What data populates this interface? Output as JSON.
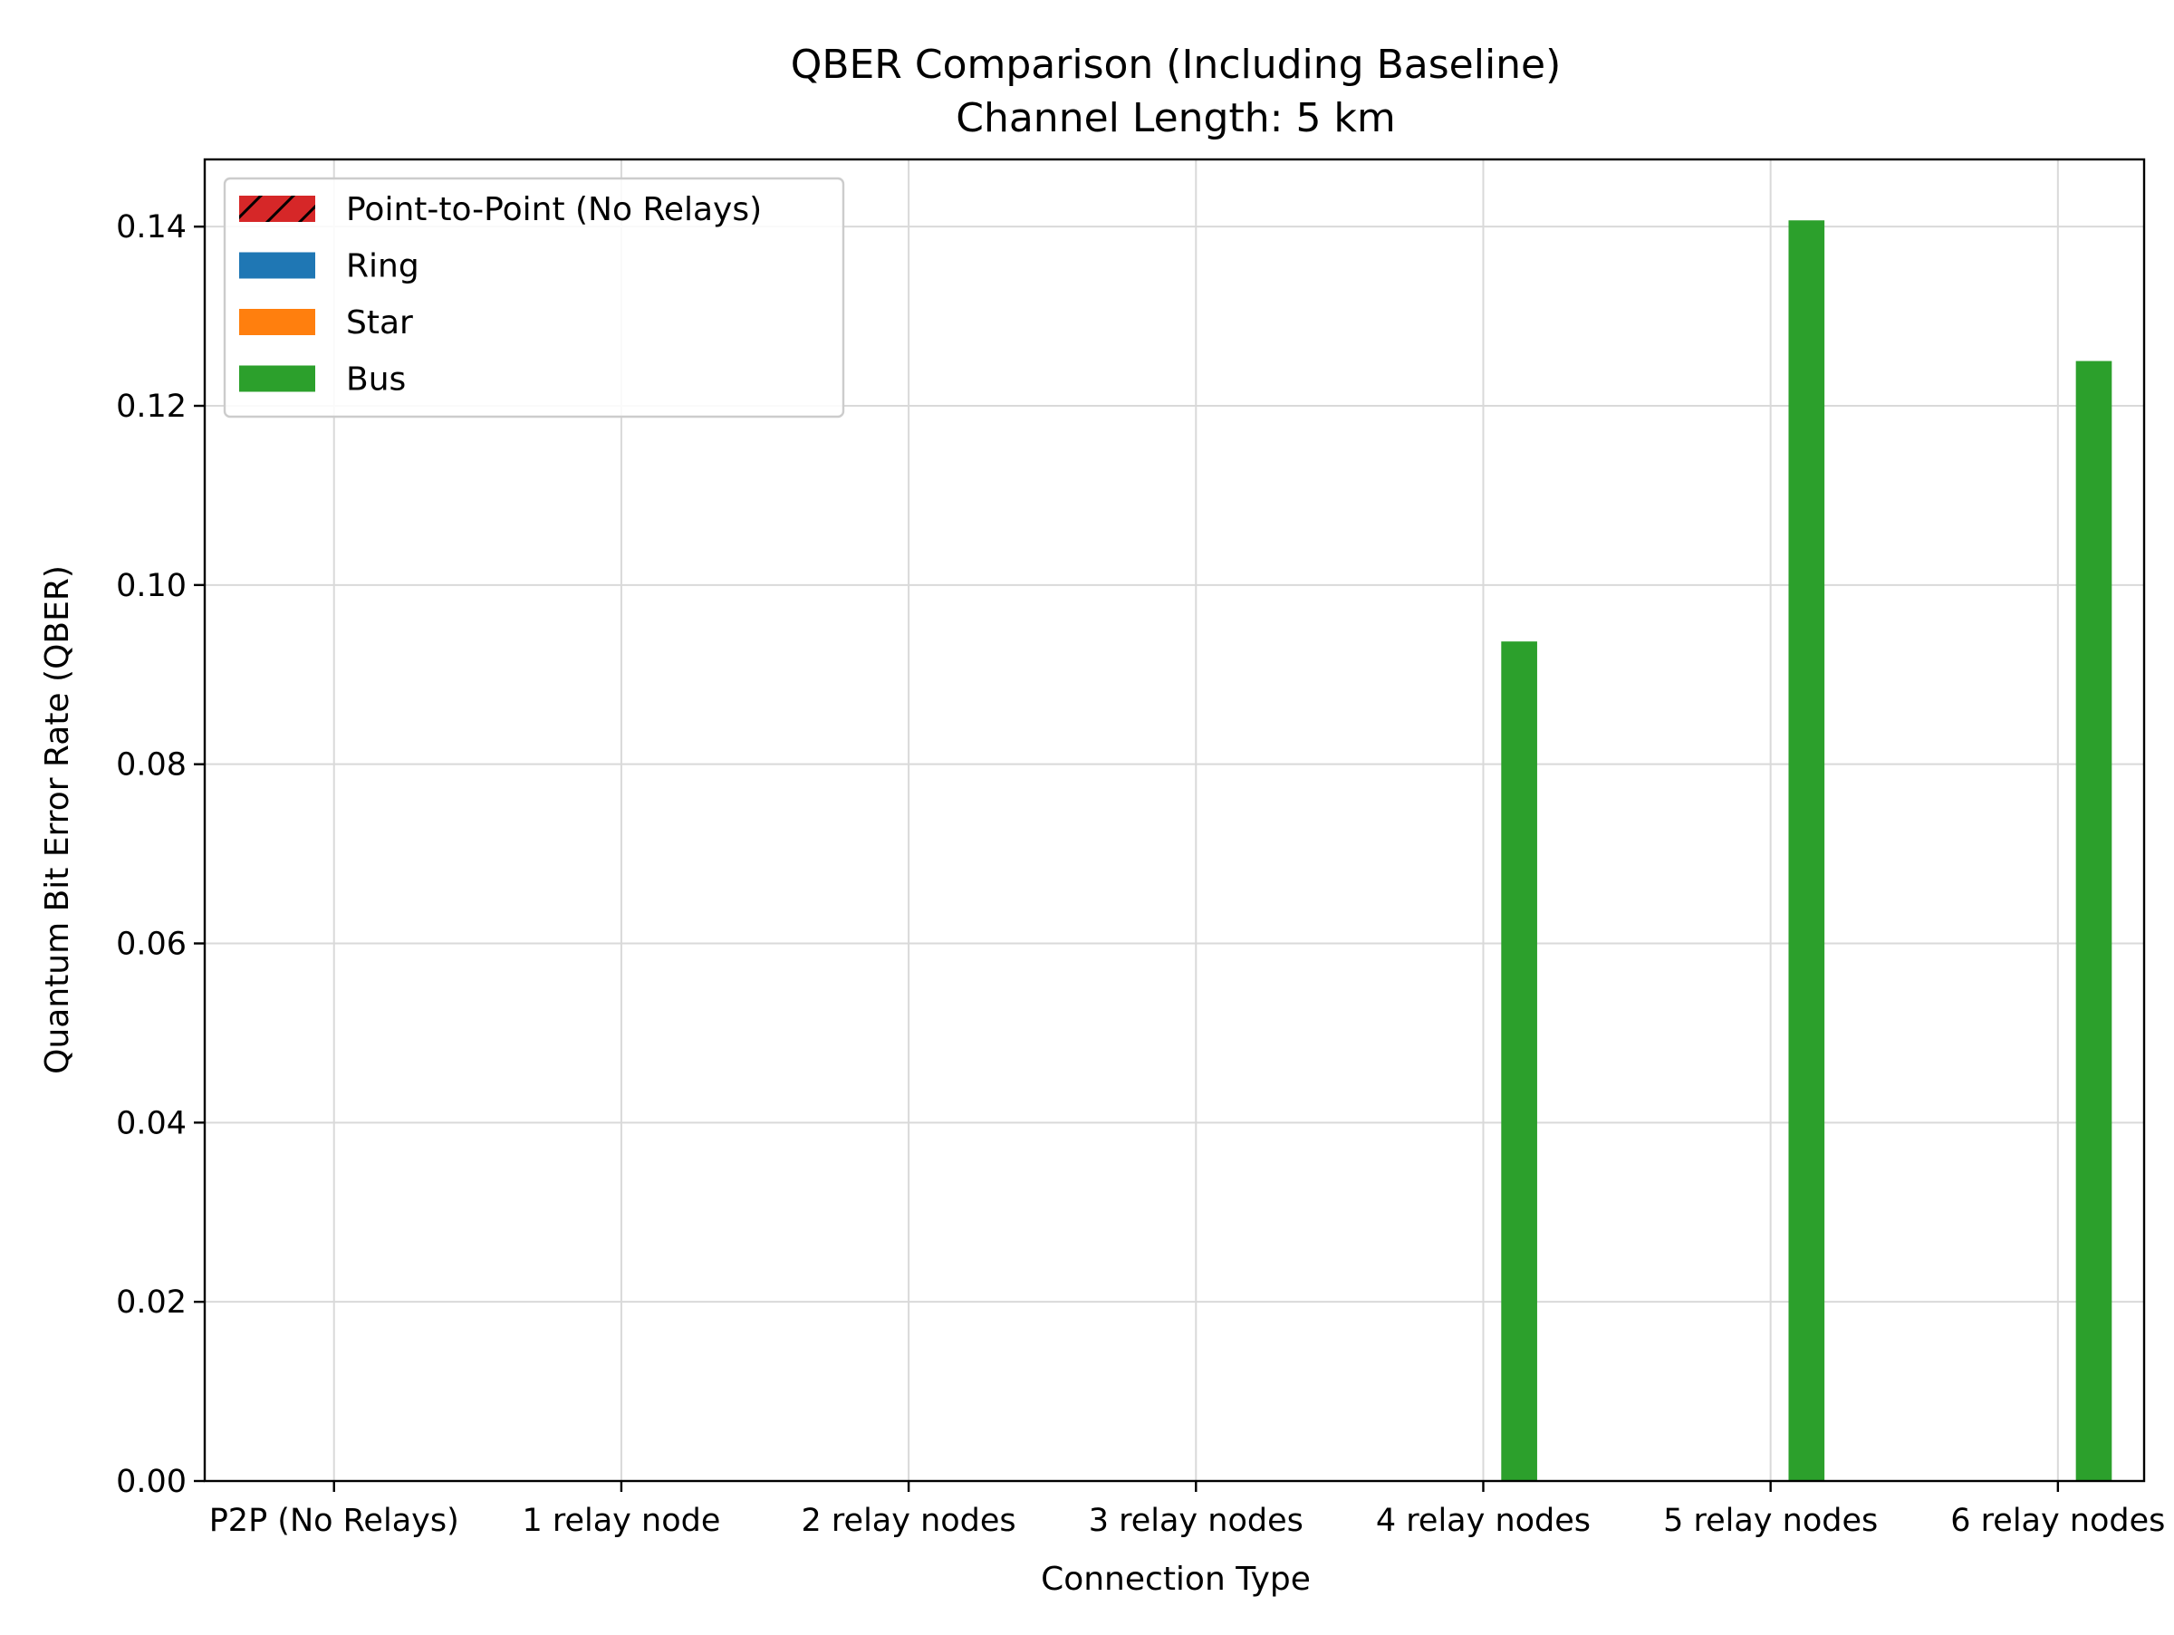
{
  "chart_data": {
    "type": "bar",
    "title": "QBER Comparison (Including Baseline)",
    "subtitle": "Channel Length: 5 km",
    "xlabel": "Connection Type",
    "ylabel": "Quantum Bit Error Rate (QBER)",
    "categories": [
      "P2P (No Relays)",
      "1 relay node",
      "2 relay nodes",
      "3 relay nodes",
      "4 relay nodes",
      "5 relay nodes",
      "6 relay nodes"
    ],
    "ylim": [
      0,
      0.1475
    ],
    "yticks": [
      0.0,
      0.02,
      0.04,
      0.06,
      0.08,
      0.1,
      0.12,
      0.14
    ],
    "ytick_labels": [
      "0.00",
      "0.02",
      "0.04",
      "0.06",
      "0.08",
      "0.10",
      "0.12",
      "0.14"
    ],
    "grid": true,
    "legend_position": "top-left",
    "series": [
      {
        "name": "Point-to-Point (No Relays)",
        "color": "#d62728",
        "hatch": true,
        "values": [
          0,
          null,
          null,
          null,
          null,
          null,
          null
        ]
      },
      {
        "name": "Ring",
        "color": "#1f77b4",
        "values": [
          null,
          0,
          0,
          0,
          0,
          0,
          0
        ]
      },
      {
        "name": "Star",
        "color": "#ff7f0e",
        "values": [
          null,
          0,
          0,
          0,
          0,
          0,
          0
        ]
      },
      {
        "name": "Bus",
        "color": "#2ca02c",
        "values": [
          null,
          0,
          0,
          0,
          0.0937,
          0.1407,
          0.125
        ]
      }
    ]
  }
}
